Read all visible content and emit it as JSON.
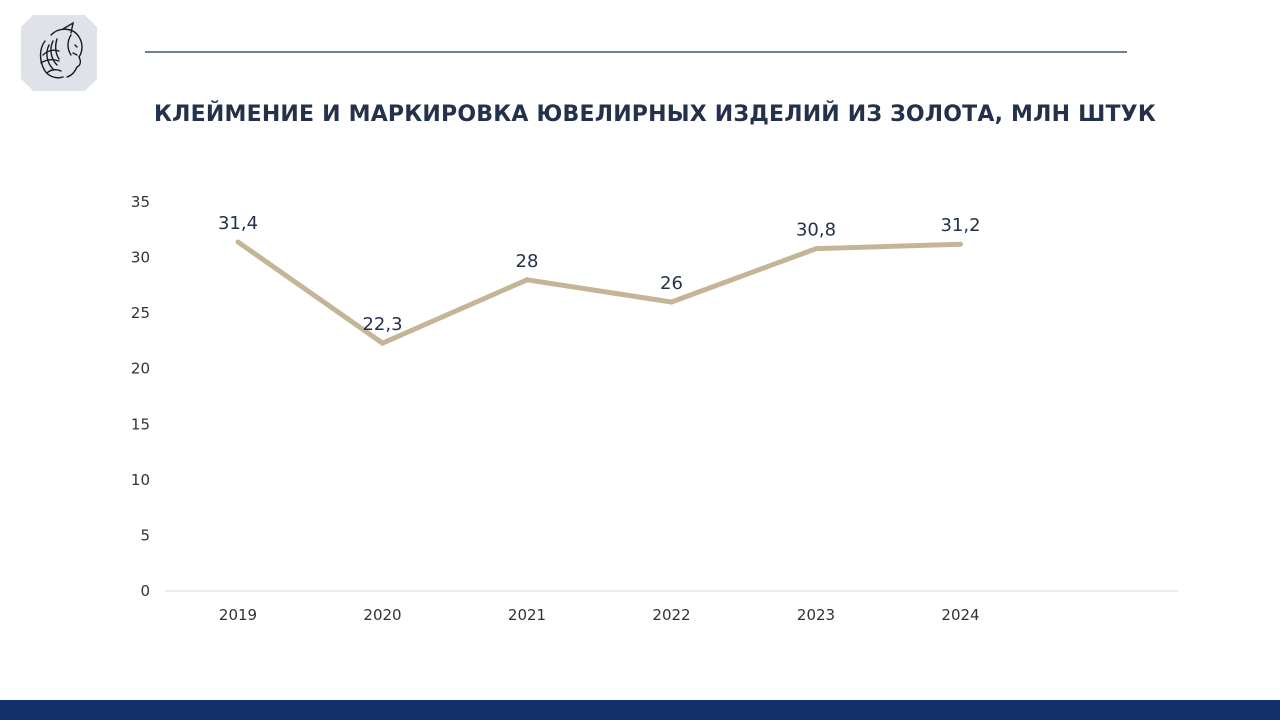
{
  "colors": {
    "line": "#c5b597",
    "text": "#24314a",
    "axis_text": "#2f3338",
    "baseline": "#d9d9d9",
    "header_rule": "#6f7f95",
    "footer": "#13306a",
    "logo_bg": "#dfe2e9"
  },
  "icons": {
    "logo": "portrait-logo-icon"
  },
  "chart_data": {
    "type": "line",
    "title": "КЛЕЙМЕНИЕ И МАРКИРОВКА ЮВЕЛИРНЫХ ИЗДЕЛИЙ ИЗ ЗОЛОТА, МЛН ШТУК",
    "categories": [
      "2019",
      "2020",
      "2021",
      "2022",
      "2023",
      "2024"
    ],
    "series": [
      {
        "values": [
          31.4,
          22.3,
          28,
          26,
          30.8,
          31.2
        ],
        "labels": [
          "31,4",
          "22,3",
          "28",
          "26",
          "30,8",
          "31,2"
        ]
      }
    ],
    "ylim": [
      0,
      35
    ],
    "yticks": [
      "0",
      "5",
      "10",
      "15",
      "20",
      "25",
      "30",
      "35"
    ],
    "grid": false,
    "legend": "none"
  }
}
